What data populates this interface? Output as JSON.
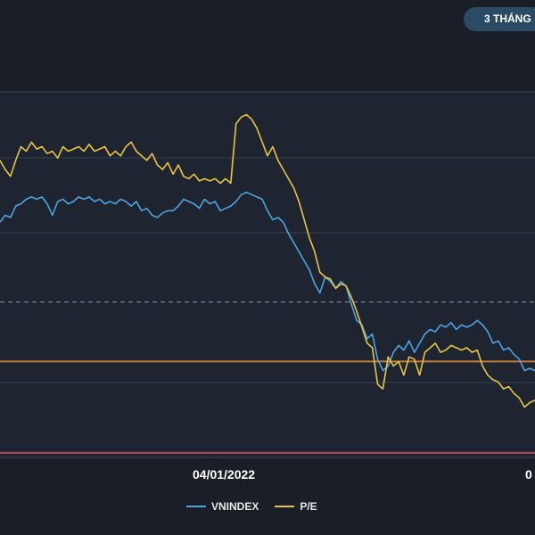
{
  "controls": {
    "range_button": "3 THÁNG"
  },
  "colors": {
    "background": "#1a1f27",
    "plot_background": "#1e2430",
    "grid": "#3a4250",
    "vnindex": "#4fa3e0",
    "pe": "#e8c547",
    "orange_line": "#c27a3a",
    "red_line": "#b04a5a"
  },
  "chart_data": {
    "type": "line",
    "title": "",
    "xlabel": "",
    "ylabel": "",
    "x_tick_labels": [
      "04/01/2022",
      "0"
    ],
    "legend_position": "bottom-center",
    "grid": true,
    "series": [
      {
        "name": "VNINDEX",
        "values": [
          0.55,
          0.58,
          0.57,
          0.62,
          0.63,
          0.65,
          0.66,
          0.65,
          0.66,
          0.63,
          0.58,
          0.64,
          0.65,
          0.63,
          0.64,
          0.66,
          0.65,
          0.66,
          0.64,
          0.65,
          0.63,
          0.64,
          0.63,
          0.65,
          0.64,
          0.62,
          0.64,
          0.6,
          0.61,
          0.58,
          0.57,
          0.59,
          0.6,
          0.6,
          0.62,
          0.65,
          0.64,
          0.63,
          0.61,
          0.65,
          0.63,
          0.64,
          0.6,
          0.61,
          0.62,
          0.64,
          0.67,
          0.68,
          0.67,
          0.66,
          0.65,
          0.6,
          0.56,
          0.57,
          0.55,
          0.5,
          0.46,
          0.42,
          0.38,
          0.34,
          0.28,
          0.24,
          0.31,
          0.29,
          0.26,
          0.29,
          0.27,
          0.19,
          0.12,
          0.1,
          0.04,
          0.06,
          -0.05,
          -0.1,
          -0.08,
          -0.02,
          0.01,
          -0.01,
          0.03,
          -0.02,
          0.02,
          0.06,
          0.08,
          0.07,
          0.1,
          0.09,
          0.11,
          0.08,
          0.1,
          0.09,
          0.1,
          0.12,
          0.1,
          0.07,
          0.02,
          0.03,
          -0.01,
          0.0,
          -0.03,
          -0.05,
          -0.1,
          -0.09,
          -0.1
        ]
      },
      {
        "name": "P/E",
        "values": [
          0.82,
          0.78,
          0.75,
          0.82,
          0.88,
          0.86,
          0.9,
          0.87,
          0.88,
          0.85,
          0.86,
          0.83,
          0.88,
          0.86,
          0.87,
          0.88,
          0.86,
          0.89,
          0.86,
          0.87,
          0.88,
          0.84,
          0.86,
          0.84,
          0.88,
          0.9,
          0.86,
          0.84,
          0.82,
          0.85,
          0.8,
          0.78,
          0.81,
          0.76,
          0.8,
          0.75,
          0.74,
          0.76,
          0.73,
          0.74,
          0.73,
          0.74,
          0.72,
          0.74,
          0.72,
          0.98,
          1.01,
          1.02,
          1.0,
          0.96,
          0.9,
          0.84,
          0.88,
          0.82,
          0.78,
          0.74,
          0.7,
          0.64,
          0.56,
          0.48,
          0.42,
          0.33,
          0.31,
          0.3,
          0.26,
          0.28,
          0.27,
          0.22,
          0.16,
          0.09,
          0.02,
          0.0,
          -0.16,
          -0.18,
          -0.04,
          -0.08,
          -0.06,
          -0.12,
          -0.04,
          -0.05,
          -0.12,
          -0.02,
          0.0,
          0.02,
          -0.02,
          -0.01,
          0.01,
          0.0,
          -0.01,
          0.0,
          -0.02,
          -0.01,
          -0.08,
          -0.12,
          -0.14,
          -0.15,
          -0.18,
          -0.17,
          -0.2,
          -0.22,
          -0.26,
          -0.24,
          -0.23
        ]
      }
    ],
    "reference_lines": [
      {
        "value": -0.06,
        "color": "#c27a3a",
        "style": "solid"
      },
      {
        "value": -0.46,
        "color": "#b04a5a",
        "style": "solid"
      },
      {
        "value": 0.2,
        "color": "#8a93a3",
        "style": "dashed"
      }
    ],
    "ylim": [
      -0.48,
      1.12
    ]
  }
}
